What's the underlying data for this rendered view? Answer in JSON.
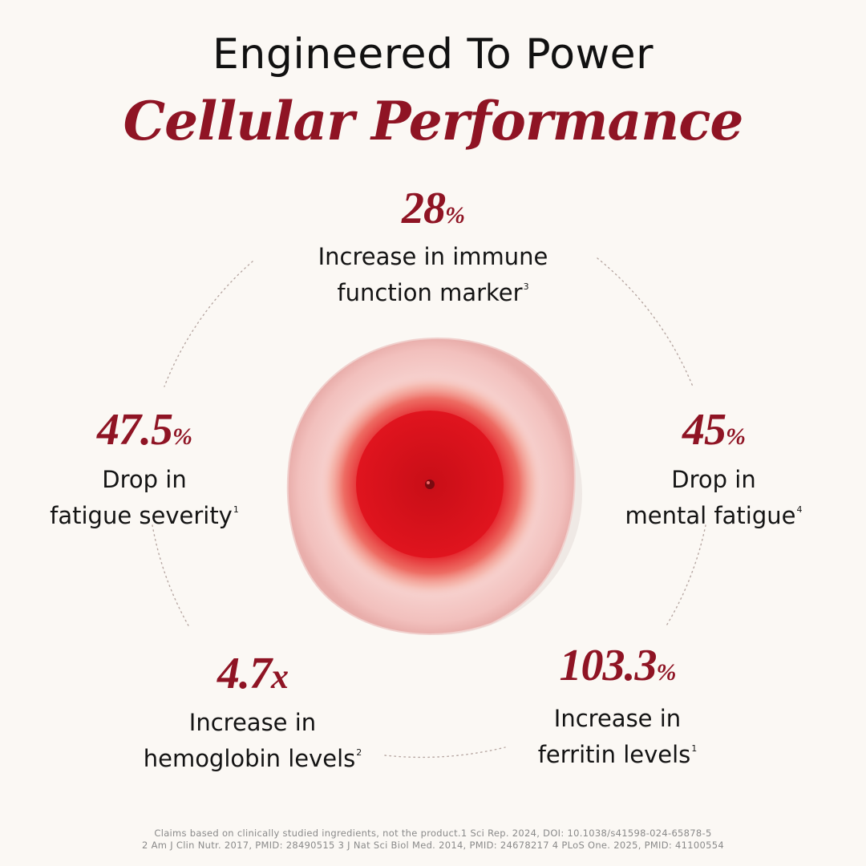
{
  "header": {
    "title": "Engineered To Power",
    "subtitle": "Cellular Performance"
  },
  "stats": [
    {
      "value": "28",
      "unit": "%",
      "line1": "Increase in immune",
      "line2": "function marker",
      "ref": "3"
    },
    {
      "value": "47.5",
      "unit": "%",
      "line1": "Drop in",
      "line2": "fatigue severity",
      "ref": "1"
    },
    {
      "value": "45",
      "unit": "%",
      "line1": "Drop in",
      "line2": "mental fatigue",
      "ref": "4"
    },
    {
      "value": "4.7",
      "unit": "x",
      "line1": "Increase in",
      "line2": "hemoglobin levels",
      "ref": "2"
    },
    {
      "value": "103.3",
      "unit": "%",
      "line1": "Increase in",
      "line2": "ferritin levels",
      "ref": "1"
    }
  ],
  "footnotes": {
    "line1": "Claims based on clinically studied ingredients, not the product.1 Sci Rep. 2024, DOI: 10.1038/s41598-024-65878-5",
    "line2": "2 Am J Clin Nutr. 2017, PMID: 28490515 3 J Nat Sci Biol Med. 2014, PMID: 24678217 4 PLoS One. 2025, PMID: 41100554"
  },
  "colors": {
    "accent": "#8f1424",
    "background": "#fbf8f4",
    "text": "#141414",
    "drop_red": "#e0141e"
  }
}
